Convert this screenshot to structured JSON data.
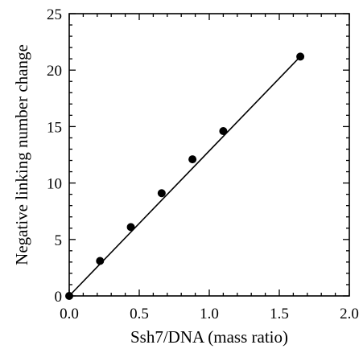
{
  "chart_data": {
    "type": "scatter",
    "title": "",
    "xlabel": "Ssh7/DNA (mass ratio)",
    "ylabel": "Negative linking number change",
    "xlim": [
      0.0,
      2.0
    ],
    "ylim": [
      0,
      25
    ],
    "x_ticks": [
      "0.0",
      "0.5",
      "1.0",
      "1.5",
      "2.0"
    ],
    "y_ticks": [
      "0",
      "5",
      "10",
      "15",
      "20",
      "25"
    ],
    "grid": false,
    "legend": "none",
    "series": [
      {
        "points": [
          {
            "x": 0.0,
            "y": 0.0
          },
          {
            "x": 0.22,
            "y": 3.1
          },
          {
            "x": 0.44,
            "y": 6.1
          },
          {
            "x": 0.66,
            "y": 9.1
          },
          {
            "x": 0.88,
            "y": 12.1
          },
          {
            "x": 1.1,
            "y": 14.6
          },
          {
            "x": 1.65,
            "y": 21.2
          }
        ]
      }
    ],
    "fit_line": {
      "x": [
        0.0,
        1.65
      ],
      "y": [
        0.0,
        21.2
      ]
    },
    "colors": {
      "axis": "#000000",
      "marker": "#000000",
      "line": "#000000"
    }
  }
}
